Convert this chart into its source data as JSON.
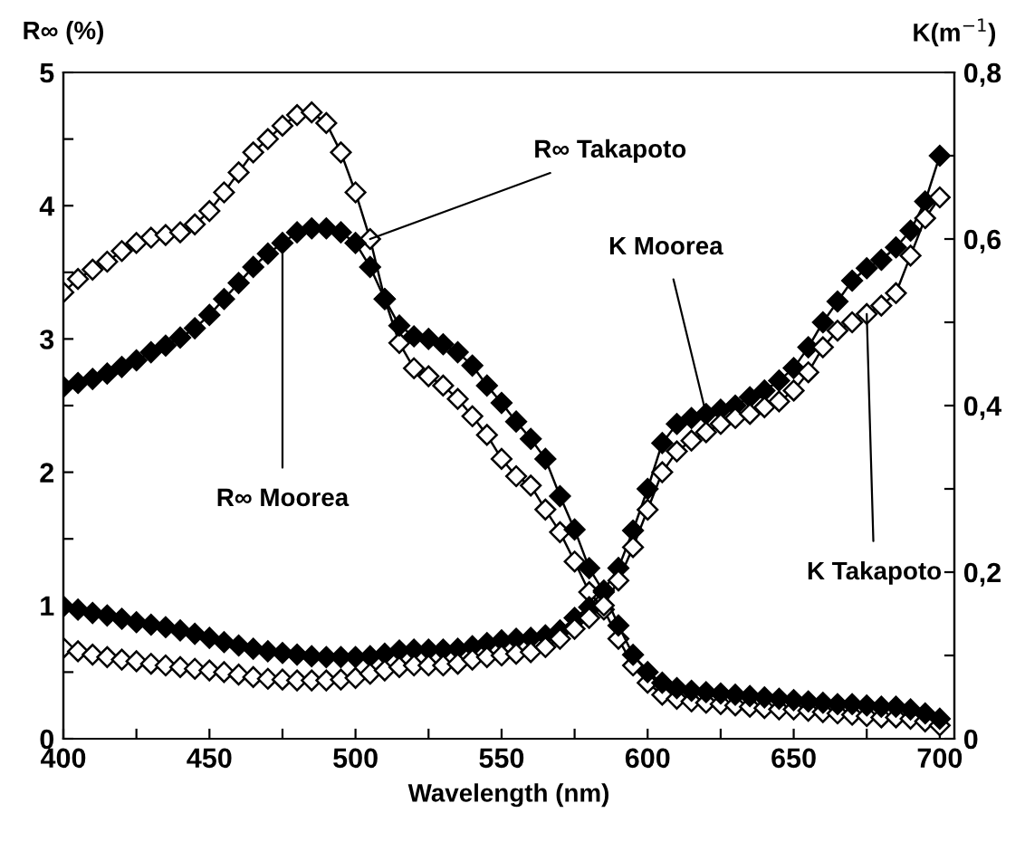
{
  "chart_data": {
    "type": "line",
    "xlabel": "Wavelength (nm)",
    "ylabel": "R∞ (%)",
    "y2label": "K(m$^{−1}$)",
    "x": [
      400,
      405,
      410,
      415,
      420,
      425,
      430,
      435,
      440,
      445,
      450,
      455,
      460,
      465,
      470,
      475,
      480,
      485,
      490,
      495,
      500,
      505,
      510,
      515,
      520,
      525,
      530,
      535,
      540,
      545,
      550,
      555,
      560,
      565,
      570,
      575,
      580,
      585,
      590,
      595,
      600,
      605,
      610,
      615,
      620,
      625,
      630,
      635,
      640,
      645,
      650,
      655,
      660,
      665,
      670,
      675,
      680,
      685,
      690,
      695,
      700
    ],
    "series": [
      {
        "name": "R∞ Takapoto",
        "color": "#000000",
        "marker": "diamond",
        "axis": "y",
        "values": [
          3.35,
          3.45,
          3.52,
          3.58,
          3.66,
          3.72,
          3.76,
          3.78,
          3.8,
          3.86,
          3.96,
          4.1,
          4.25,
          4.4,
          4.5,
          4.6,
          4.68,
          4.7,
          4.62,
          4.4,
          4.1,
          3.75,
          3.3,
          2.97,
          2.78,
          2.72,
          2.65,
          2.55,
          2.42,
          2.28,
          2.1,
          1.97,
          1.9,
          1.72,
          1.55,
          1.33,
          1.1,
          0.97,
          0.75,
          0.55,
          0.42,
          0.33,
          0.3,
          0.28,
          0.27,
          0.26,
          0.25,
          0.24,
          0.23,
          0.22,
          0.22,
          0.21,
          0.2,
          0.19,
          0.18,
          0.17,
          0.16,
          0.16,
          0.15,
          0.13,
          0.1
        ]
      },
      {
        "name": "R∞ Moorea",
        "color": "#000000",
        "marker": "diamond",
        "axis": "y",
        "values": [
          2.64,
          2.67,
          2.7,
          2.74,
          2.79,
          2.84,
          2.9,
          2.95,
          3.01,
          3.08,
          3.18,
          3.3,
          3.42,
          3.54,
          3.64,
          3.72,
          3.8,
          3.83,
          3.83,
          3.8,
          3.72,
          3.54,
          3.3,
          3.1,
          3.02,
          3.0,
          2.96,
          2.9,
          2.8,
          2.65,
          2.52,
          2.38,
          2.25,
          2.1,
          1.82,
          1.57,
          1.28,
          1.1,
          0.85,
          0.63,
          0.5,
          0.42,
          0.38,
          0.36,
          0.35,
          0.34,
          0.33,
          0.32,
          0.31,
          0.3,
          0.29,
          0.28,
          0.27,
          0.26,
          0.26,
          0.25,
          0.24,
          0.24,
          0.22,
          0.19,
          0.15
        ]
      },
      {
        "name": "K Moorea",
        "color": "#000000",
        "marker": "diamond",
        "axis": "y2",
        "values": [
          0.159,
          0.155,
          0.151,
          0.148,
          0.144,
          0.14,
          0.137,
          0.134,
          0.13,
          0.126,
          0.121,
          0.116,
          0.112,
          0.108,
          0.105,
          0.103,
          0.101,
          0.099,
          0.098,
          0.098,
          0.098,
          0.099,
          0.102,
          0.106,
          0.107,
          0.107,
          0.107,
          0.108,
          0.111,
          0.115,
          0.118,
          0.12,
          0.121,
          0.124,
          0.13,
          0.145,
          0.158,
          0.178,
          0.205,
          0.25,
          0.3,
          0.355,
          0.378,
          0.385,
          0.39,
          0.395,
          0.4,
          0.41,
          0.418,
          0.43,
          0.445,
          0.47,
          0.5,
          0.525,
          0.55,
          0.565,
          0.575,
          0.59,
          0.61,
          0.645,
          0.7
        ]
      },
      {
        "name": "K Takapoto",
        "color": "#000000",
        "marker": "diamond",
        "axis": "y2",
        "values": [
          0.109,
          0.105,
          0.101,
          0.098,
          0.095,
          0.093,
          0.09,
          0.088,
          0.086,
          0.084,
          0.082,
          0.08,
          0.077,
          0.074,
          0.072,
          0.071,
          0.07,
          0.07,
          0.07,
          0.071,
          0.073,
          0.078,
          0.082,
          0.086,
          0.088,
          0.088,
          0.088,
          0.09,
          0.095,
          0.098,
          0.1,
          0.102,
          0.104,
          0.11,
          0.12,
          0.132,
          0.145,
          0.16,
          0.19,
          0.23,
          0.275,
          0.32,
          0.345,
          0.358,
          0.368,
          0.378,
          0.385,
          0.39,
          0.398,
          0.405,
          0.418,
          0.44,
          0.47,
          0.49,
          0.5,
          0.51,
          0.52,
          0.535,
          0.58,
          0.625,
          0.65
        ]
      }
    ],
    "xlim": [
      400,
      705
    ],
    "ylim": [
      0,
      5
    ],
    "y2lim": [
      0,
      0.8
    ],
    "xticks": [
      400,
      {
        "value": 425,
        "label": null
      },
      450,
      {
        "value": 475,
        "label": null
      },
      500,
      {
        "value": 525,
        "label": null
      },
      550,
      {
        "value": 575,
        "label": null
      },
      600,
      {
        "value": 625,
        "label": null
      },
      650,
      {
        "value": 675,
        "label": null
      },
      700
    ],
    "yticks": [
      0,
      {
        "value": 0.5,
        "label": null
      },
      1,
      {
        "value": 1.5,
        "label": null
      },
      2,
      {
        "value": 2.5,
        "label": null
      },
      3,
      {
        "value": 3.5,
        "label": null
      },
      4,
      {
        "value": 4.5,
        "label": null
      },
      5
    ],
    "y2ticks": [
      {
        "value": 0,
        "label": "0"
      },
      {
        "value": 0.1,
        "label": null
      },
      {
        "value": 0.2,
        "label": "0,2"
      },
      {
        "value": 0.3,
        "label": null
      },
      {
        "value": 0.4,
        "label": "0,4"
      },
      {
        "value": 0.5,
        "label": null
      },
      {
        "value": 0.6,
        "label": "0,6"
      },
      {
        "value": 0.7,
        "label": null
      },
      {
        "value": 0.8,
        "label": "0,8"
      }
    ],
    "grid": false,
    "legend": false,
    "line_style": "solid"
  }
}
